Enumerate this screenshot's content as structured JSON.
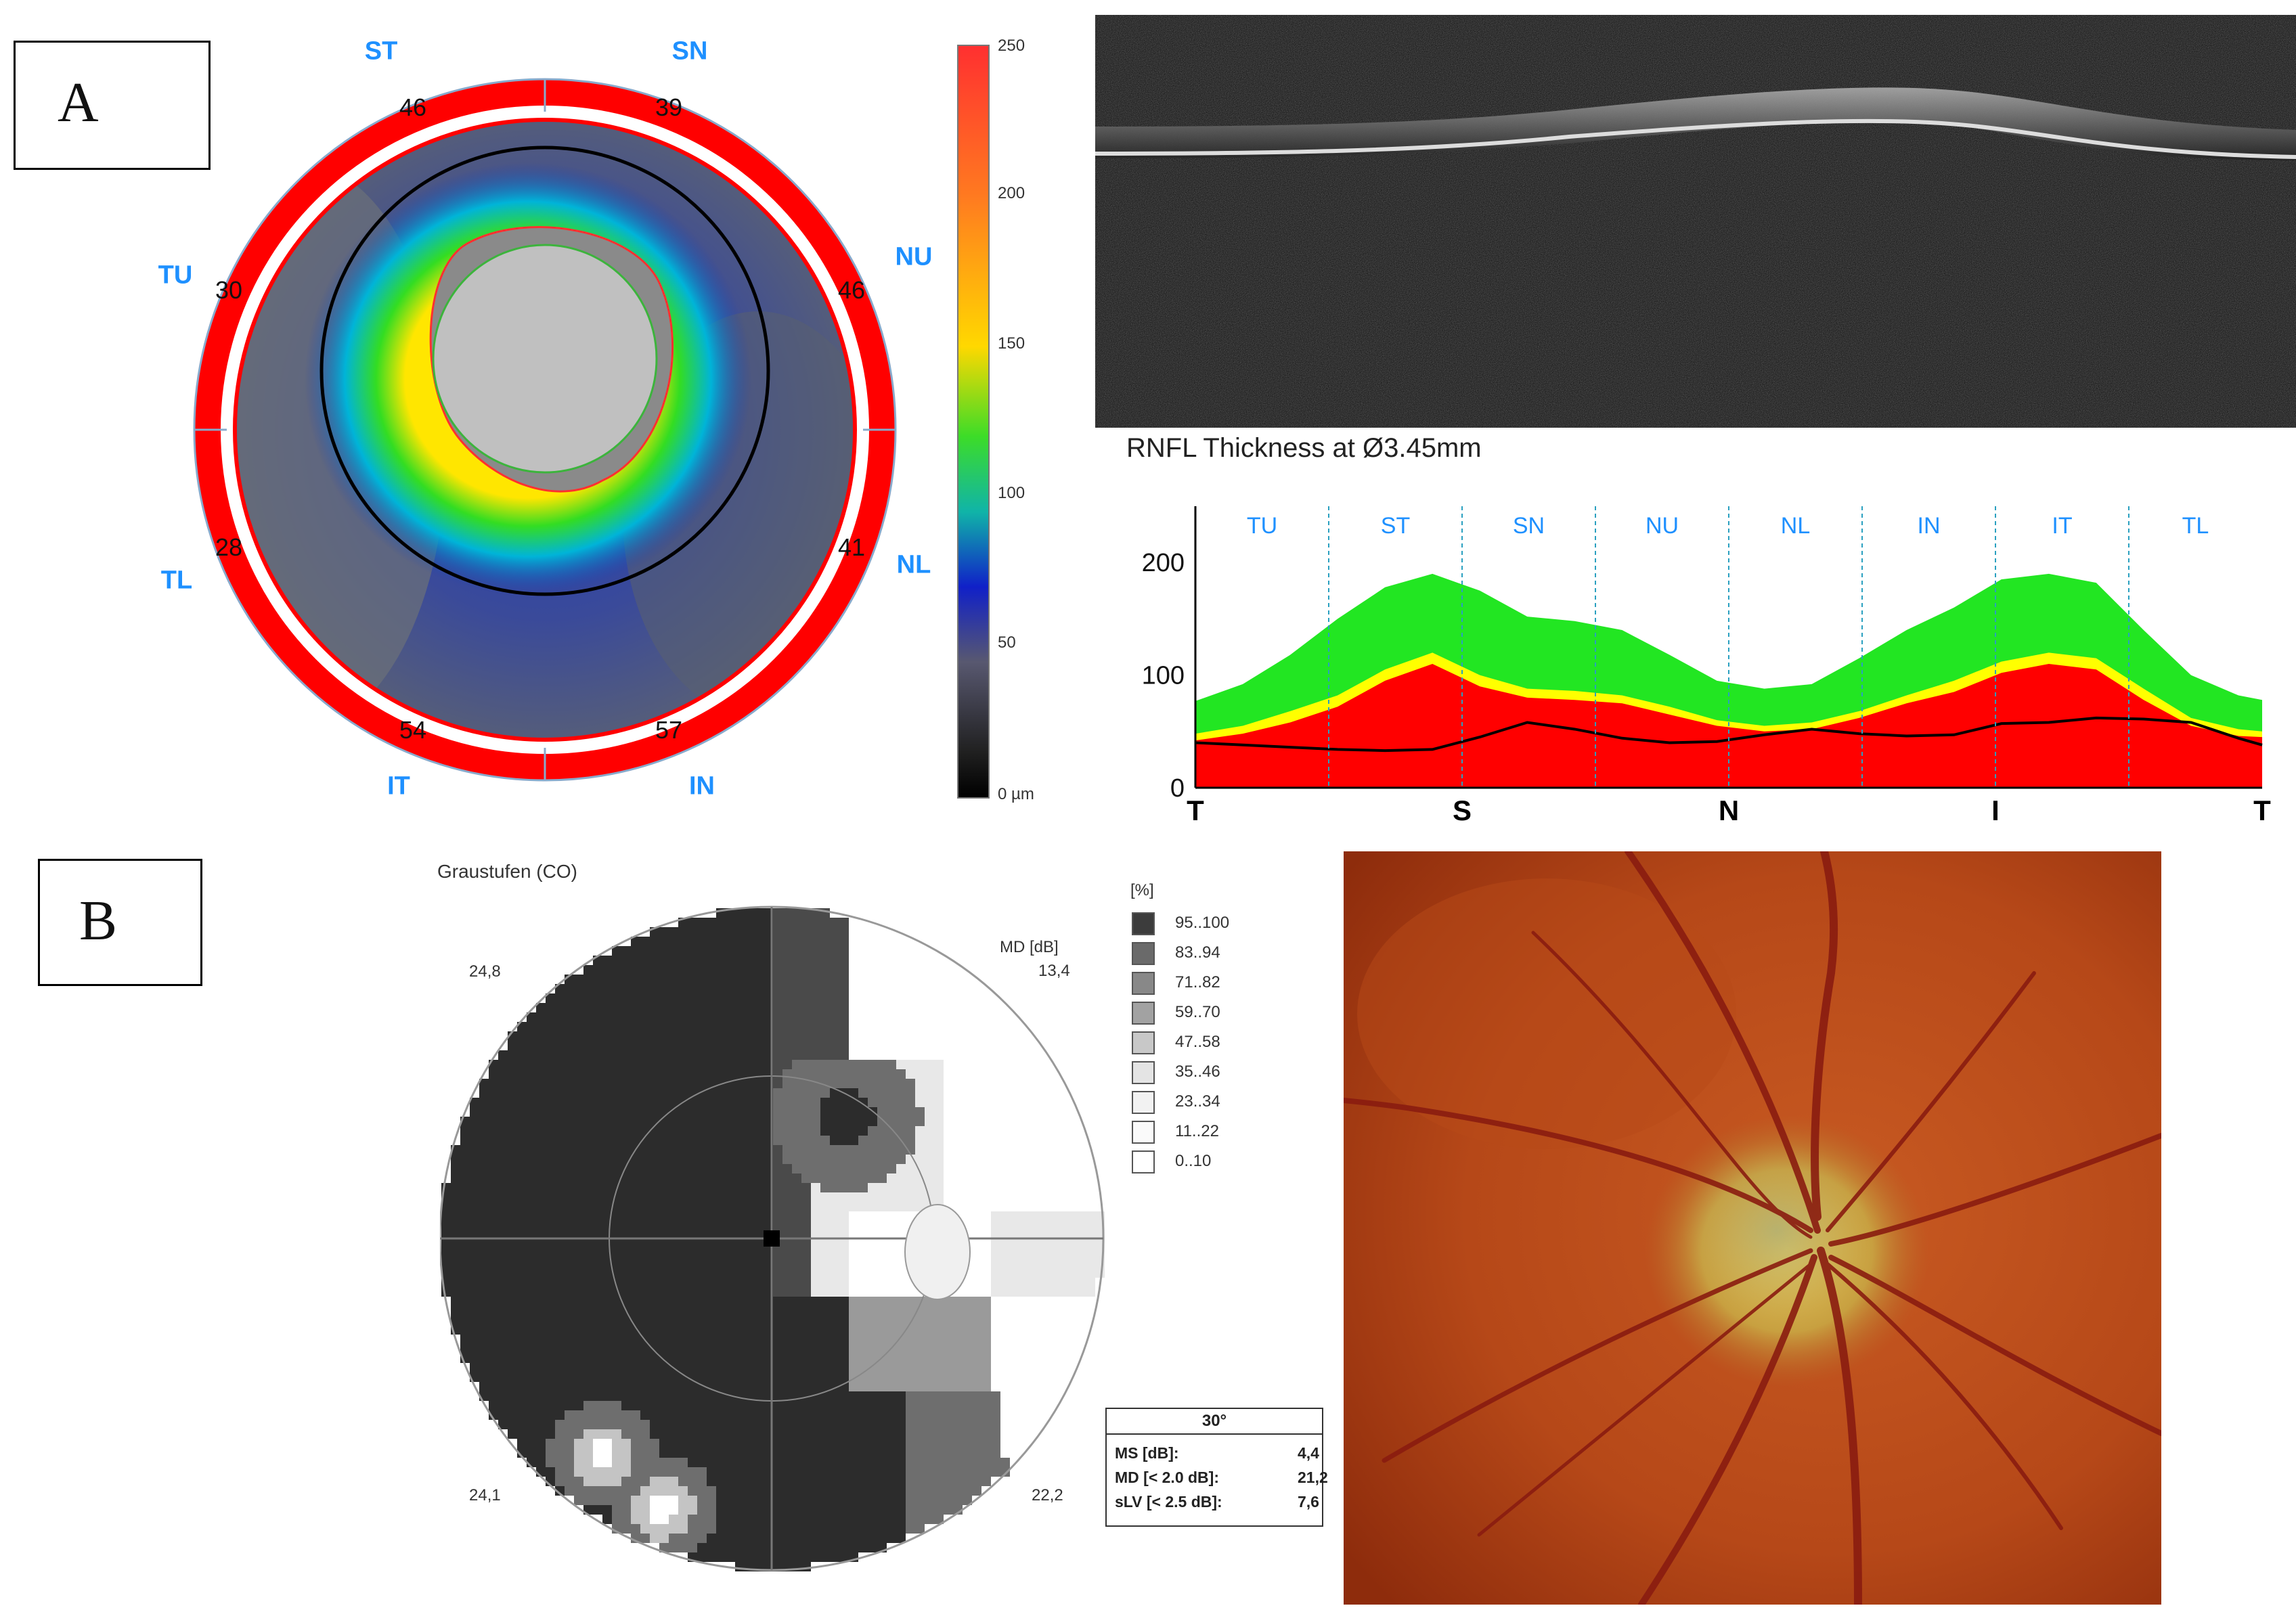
{
  "panels": {
    "a_label": "A",
    "b_label": "B"
  },
  "onh_map": {
    "sector_labels": {
      "st": "ST",
      "sn": "SN",
      "nu": "NU",
      "nl": "NL",
      "in": "IN",
      "it": "IT",
      "tl": "TL",
      "tu": "TU"
    },
    "sector_values": {
      "st": "46",
      "sn": "39",
      "nu": "46",
      "nl": "41",
      "in": "57",
      "it": "54",
      "tl": "28",
      "tu": "30"
    }
  },
  "colorbar": {
    "ticks": [
      "250",
      "200",
      "150",
      "100",
      "50",
      "0 µm"
    ]
  },
  "rnfl": {
    "title": "RNFL Thickness at Ø3.45mm",
    "sectors": [
      "TU",
      "ST",
      "SN",
      "NU",
      "NL",
      "IN",
      "IT",
      "TL"
    ],
    "x_ticks": [
      "T",
      "S",
      "N",
      "I",
      "T"
    ],
    "y_ticks": [
      "200",
      "100",
      "0"
    ]
  },
  "chart_data": {
    "type": "area",
    "title": "RNFL Thickness at Ø3.45mm",
    "xlabel": "",
    "ylabel": "",
    "ylim": [
      0,
      250
    ],
    "x": [
      0,
      16,
      32,
      48,
      64,
      80,
      96,
      112,
      128,
      144,
      160,
      176,
      192,
      208,
      224,
      240,
      256,
      272,
      288,
      304,
      320,
      336,
      352,
      360
    ],
    "series": [
      {
        "values": [
          40,
          38,
          36,
          34,
          33,
          34,
          45,
          58,
          52,
          44,
          40,
          41,
          47,
          52,
          48,
          46,
          47,
          57,
          58,
          62,
          61,
          58,
          44,
          38
        ]
      },
      {
        "values": [
          77,
          92,
          118,
          150,
          178,
          190,
          175,
          152,
          148,
          140,
          118,
          95,
          88,
          92,
          115,
          140,
          160,
          185,
          190,
          182,
          140,
          100,
          82,
          78
        ]
      },
      {
        "values": [
          48,
          55,
          68,
          82,
          105,
          120,
          100,
          88,
          86,
          82,
          72,
          60,
          55,
          58,
          68,
          82,
          95,
          112,
          120,
          115,
          88,
          62,
          52,
          50
        ]
      },
      {
        "values": [
          42,
          48,
          58,
          72,
          95,
          110,
          90,
          80,
          78,
          75,
          65,
          55,
          50,
          52,
          62,
          75,
          85,
          102,
          110,
          105,
          78,
          55,
          46,
          45
        ]
      }
    ]
  },
  "visual_field": {
    "title": "Graustufen (CO)",
    "legend_unit": "[%]",
    "legend": [
      "95..100",
      "83..94",
      "71..82",
      "59..70",
      "47..58",
      "35..46",
      "23..34",
      "11..22",
      "0..10"
    ],
    "legend_colors": [
      "#3c3c3c",
      "#6a6a6a",
      "#888888",
      "#a2a2a2",
      "#c8c8c8",
      "#e4e4e4",
      "#f2f2f2",
      "#fafafa",
      "#ffffff"
    ],
    "md_label": "MD [dB]",
    "md_value": "13,4",
    "quadrant_values": {
      "tl": "24,8",
      "bl": "24,1",
      "br": "22,2"
    },
    "stats": {
      "header": "30°",
      "rows": [
        {
          "label": "MS [dB]:",
          "value": "4,4"
        },
        {
          "label": "MD [< 2.0 dB]:",
          "value": "21,2"
        },
        {
          "label": "sLV [< 2.5 dB]:",
          "value": "7,6"
        }
      ]
    }
  }
}
